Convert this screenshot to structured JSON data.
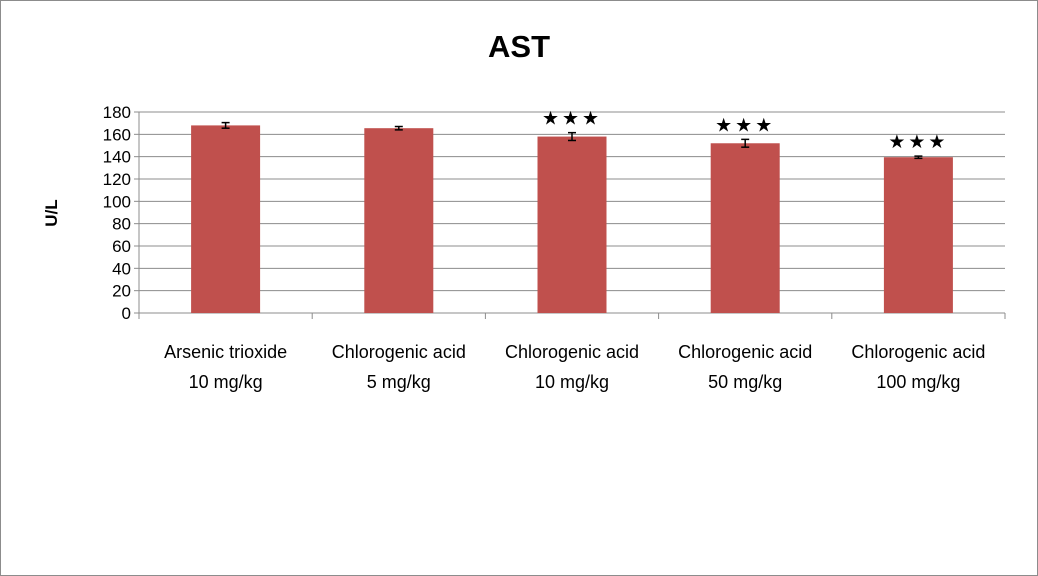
{
  "chart_data": {
    "type": "bar",
    "title": "AST",
    "xlabel": "",
    "ylabel": "U/L",
    "ylim": [
      0,
      180
    ],
    "yticks": [
      0,
      20,
      40,
      60,
      80,
      100,
      120,
      140,
      160,
      180
    ],
    "grid": true,
    "legend": "none",
    "bar_color": "#c0504d",
    "categories": [
      [
        "Arsenic trioxide",
        "10 mg/kg"
      ],
      [
        "Chlorogenic acid",
        "5 mg/kg"
      ],
      [
        "Chlorogenic acid",
        "10 mg/kg"
      ],
      [
        "Chlorogenic acid",
        "50 mg/kg"
      ],
      [
        "Chlorogenic acid",
        "100 mg/kg"
      ]
    ],
    "values": [
      168,
      165.5,
      158,
      152,
      139.5
    ],
    "errors": [
      2.5,
      1.5,
      3.5,
      3.5,
      1
    ],
    "annotations": [
      "",
      "",
      "★★★",
      "★★★",
      "★★★"
    ]
  }
}
